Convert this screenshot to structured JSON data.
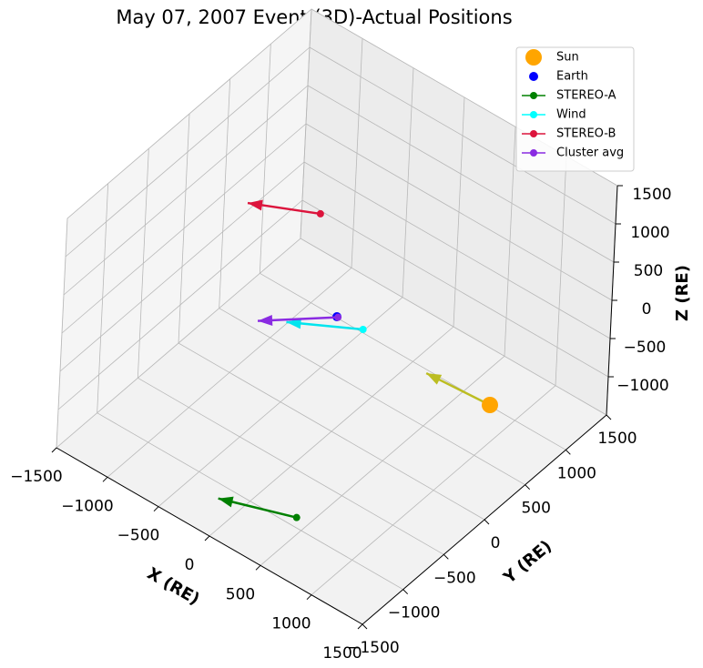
{
  "chart_data": {
    "type": "scatter3d",
    "title": "May 07, 2007 Event (3D)-Actual Positions",
    "xlabel": "X (RE)",
    "ylabel": "Y (RE)",
    "zlabel": "Z (RE)",
    "xlim": [
      -1500,
      1500
    ],
    "ylim": [
      -1500,
      1500
    ],
    "zlim": [
      -1500,
      1500
    ],
    "xticks": [
      {
        "value": -1500,
        "label": "−1500"
      },
      {
        "value": -1000,
        "label": "−1000"
      },
      {
        "value": -500,
        "label": "−500"
      },
      0,
      500,
      1000,
      1500
    ],
    "yticks": [
      {
        "value": -1500,
        "label": "−1500"
      },
      {
        "value": -1000,
        "label": "−1000"
      },
      {
        "value": -500,
        "label": "−500"
      },
      0,
      500,
      1000,
      1500
    ],
    "zticks": [
      {
        "value": -1000,
        "label": "−1000"
      },
      {
        "value": -500,
        "label": "−500"
      },
      0,
      500,
      1000,
      1500
    ],
    "grid": true,
    "legend": "upper right",
    "series": [
      {
        "name": "Sun",
        "color": "#ffa500",
        "marker_size": 9,
        "line": false,
        "x": [
          1500
        ],
        "y": [
          0
        ],
        "z": [
          0
        ],
        "normal": [
          -590,
          -42,
          0
        ],
        "normal_color": "#bcbd22"
      },
      {
        "name": "Earth",
        "color": "#0000ff",
        "marker_size": 5,
        "line": false,
        "x": [
          0
        ],
        "y": [
          0
        ],
        "z": [
          0
        ]
      },
      {
        "name": "STEREO-A",
        "color": "#008000",
        "marker_size": 4,
        "line": true,
        "x": [
          600
        ],
        "y": [
          -1200
        ],
        "z": [
          -1070
        ],
        "normal": [
          -590,
          -224,
          0
        ],
        "normal_color": "#008000"
      },
      {
        "name": "Wind",
        "color": "#00ffff",
        "marker_size": 4,
        "line": true,
        "x": [
          240
        ],
        "y": [
          20
        ],
        "z": [
          0
        ],
        "normal": [
          -500,
          -316,
          0
        ],
        "normal_color": "#00e5ee"
      },
      {
        "name": "STEREO-B",
        "color": "#dc143c",
        "marker_size": 4,
        "line": true,
        "x": [
          -800
        ],
        "y": [
          800
        ],
        "z": [
          0
        ],
        "normal": [
          -500,
          -267,
          0
        ],
        "normal_color": "#dc143c"
      },
      {
        "name": "Cluster avg",
        "color": "#8a2be2",
        "marker_size": 4,
        "line": true,
        "x": [
          10
        ],
        "y": [
          0
        ],
        "z": [
          0
        ],
        "normal": [
          -445,
          -428,
          0
        ],
        "normal_color": "#8a2be2"
      }
    ]
  }
}
